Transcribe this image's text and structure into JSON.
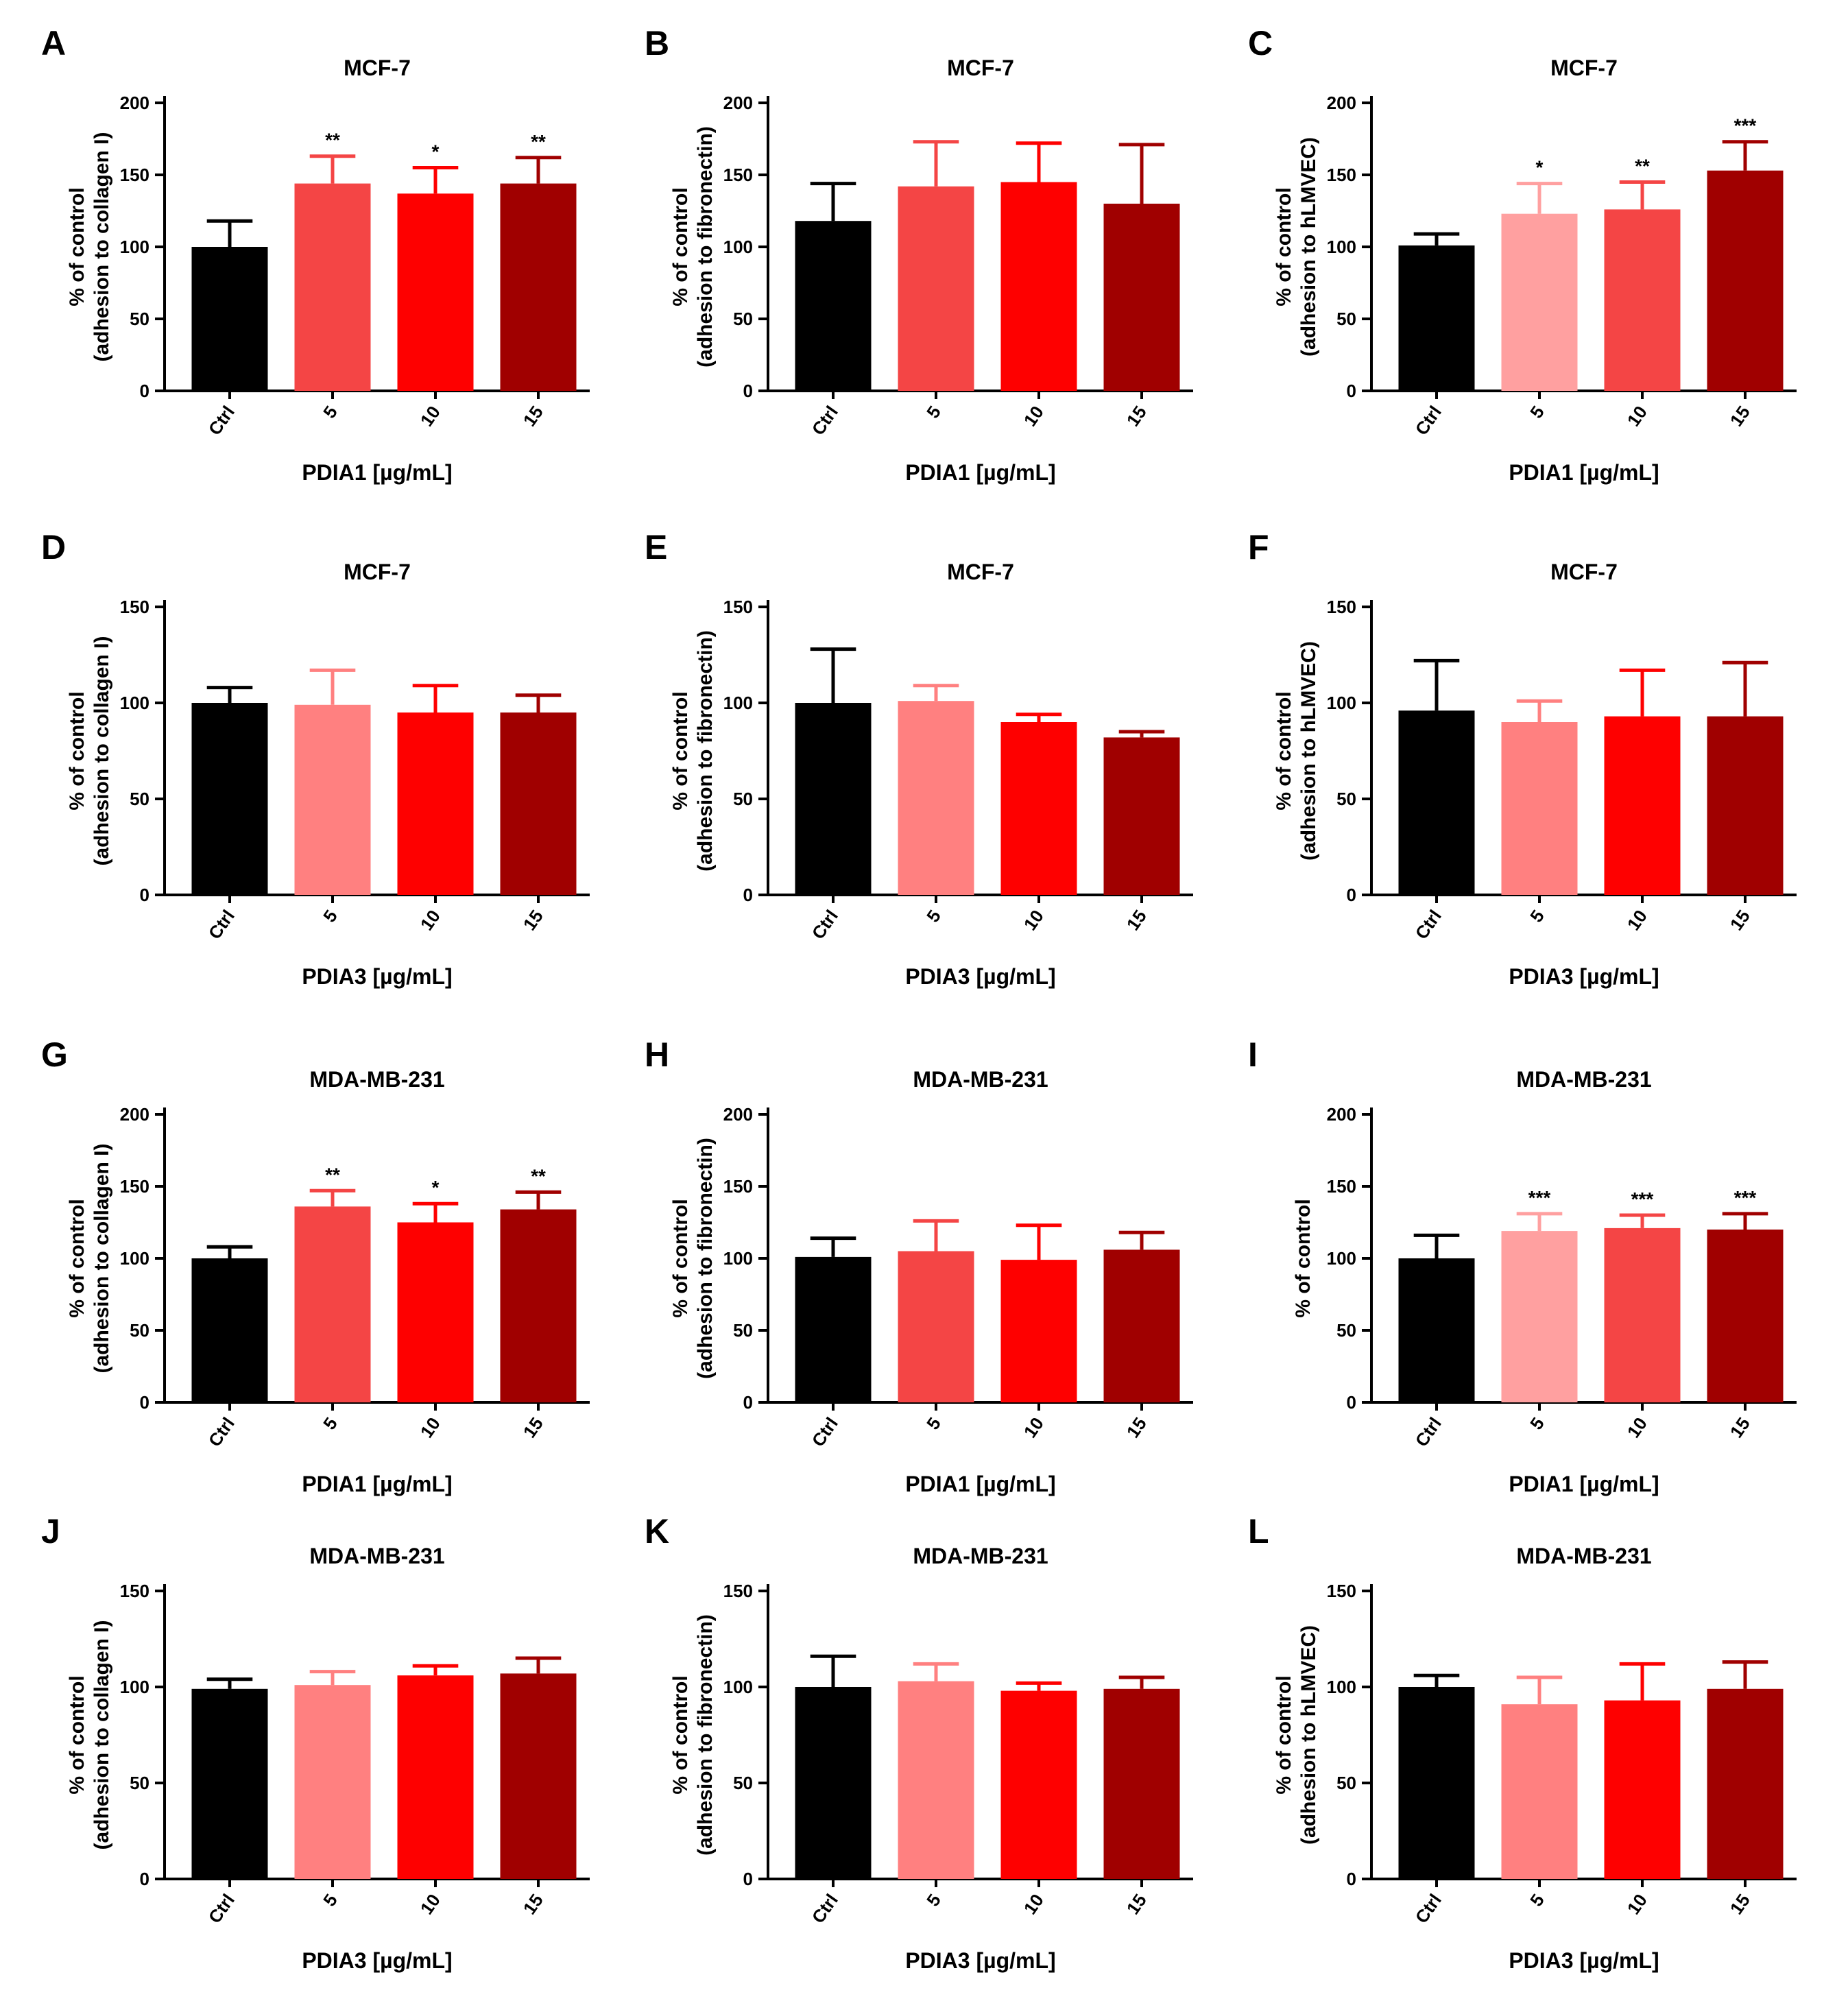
{
  "chart_data": [
    {
      "label": "A",
      "type": "bar",
      "title": "MCF-7",
      "ylabel_line1": "% of control",
      "ylabel_line2": "(adhesion to collagen I)",
      "xlabel": "PDIA1 [µg/mL]",
      "categories": [
        "Ctrl",
        "5",
        "10",
        "15"
      ],
      "values": [
        100,
        144,
        137,
        144
      ],
      "errors": [
        18,
        19,
        18,
        18
      ],
      "significance": [
        "",
        "**",
        "*",
        "**"
      ],
      "colors": [
        "#000000",
        "#f44545",
        "#fe0000",
        "#a00000"
      ],
      "ylim": [
        0,
        200
      ],
      "yticks": [
        0,
        50,
        100,
        150,
        200
      ]
    },
    {
      "label": "B",
      "type": "bar",
      "title": "MCF-7",
      "ylabel_line1": "% of control",
      "ylabel_line2": "(adhesion to fibronectin)",
      "xlabel": "PDIA1 [µg/mL]",
      "categories": [
        "Ctrl",
        "5",
        "10",
        "15"
      ],
      "values": [
        118,
        142,
        145,
        130
      ],
      "errors": [
        26,
        31,
        27,
        41
      ],
      "significance": [
        "",
        "",
        "",
        ""
      ],
      "colors": [
        "#000000",
        "#f44545",
        "#fe0000",
        "#a00000"
      ],
      "ylim": [
        0,
        200
      ],
      "yticks": [
        0,
        50,
        100,
        150,
        200
      ]
    },
    {
      "label": "C",
      "type": "bar",
      "title": "MCF-7",
      "ylabel_line1": "% of control",
      "ylabel_line2": "(adhesion to hLMVEC)",
      "xlabel": "PDIA1 [µg/mL]",
      "categories": [
        "Ctrl",
        "5",
        "10",
        "15"
      ],
      "values": [
        101,
        123,
        126,
        153
      ],
      "errors": [
        8,
        21,
        19,
        20
      ],
      "significance": [
        "",
        "*",
        "**",
        "***"
      ],
      "colors": [
        "#000000",
        "#ffa0a0",
        "#f44545",
        "#a00000"
      ],
      "ylim": [
        0,
        200
      ],
      "yticks": [
        0,
        50,
        100,
        150,
        200
      ]
    },
    {
      "label": "D",
      "type": "bar",
      "title": "MCF-7",
      "ylabel_line1": "% of control",
      "ylabel_line2": "(adhesion to collagen I)",
      "xlabel": "PDIA3 [µg/mL]",
      "categories": [
        "Ctrl",
        "5",
        "10",
        "15"
      ],
      "values": [
        100,
        99,
        95,
        95
      ],
      "errors": [
        8,
        18,
        14,
        9
      ],
      "significance": [
        "",
        "",
        "",
        ""
      ],
      "colors": [
        "#000000",
        "#ff8080",
        "#fe0000",
        "#a00000"
      ],
      "ylim": [
        0,
        150
      ],
      "yticks": [
        0,
        50,
        100,
        150
      ]
    },
    {
      "label": "E",
      "type": "bar",
      "title": "MCF-7",
      "ylabel_line1": "% of control",
      "ylabel_line2": "(adhesion to fibronectin)",
      "xlabel": "PDIA3 [µg/mL]",
      "categories": [
        "Ctrl",
        "5",
        "10",
        "15"
      ],
      "values": [
        100,
        101,
        90,
        82
      ],
      "errors": [
        28,
        8,
        4,
        3
      ],
      "significance": [
        "",
        "",
        "",
        ""
      ],
      "colors": [
        "#000000",
        "#ff8080",
        "#fe0000",
        "#a00000"
      ],
      "ylim": [
        0,
        150
      ],
      "yticks": [
        0,
        50,
        100,
        150
      ]
    },
    {
      "label": "F",
      "type": "bar",
      "title": "MCF-7",
      "ylabel_line1": "% of control",
      "ylabel_line2": "(adhesion to hLMVEC)",
      "xlabel": "PDIA3 [µg/mL]",
      "categories": [
        "Ctrl",
        "5",
        "10",
        "15"
      ],
      "values": [
        96,
        90,
        93,
        93
      ],
      "errors": [
        26,
        11,
        24,
        28
      ],
      "significance": [
        "",
        "",
        "",
        ""
      ],
      "colors": [
        "#000000",
        "#ff8080",
        "#fe0000",
        "#a00000"
      ],
      "ylim": [
        0,
        150
      ],
      "yticks": [
        0,
        50,
        100,
        150
      ]
    },
    {
      "label": "G",
      "type": "bar",
      "title": "MDA-MB-231",
      "ylabel_line1": "% of control",
      "ylabel_line2": "(adhesion to collagen I)",
      "xlabel": "PDIA1 [µg/mL]",
      "categories": [
        "Ctrl",
        "5",
        "10",
        "15"
      ],
      "values": [
        100,
        136,
        125,
        134
      ],
      "errors": [
        8,
        11,
        13,
        12
      ],
      "significance": [
        "",
        "**",
        "*",
        "**"
      ],
      "colors": [
        "#000000",
        "#f44545",
        "#fe0000",
        "#a00000"
      ],
      "ylim": [
        0,
        200
      ],
      "yticks": [
        0,
        50,
        100,
        150,
        200
      ]
    },
    {
      "label": "H",
      "type": "bar",
      "title": "MDA-MB-231",
      "ylabel_line1": "% of control",
      "ylabel_line2": "(adhesion to fibronectin)",
      "xlabel": "PDIA1 [µg/mL]",
      "categories": [
        "Ctrl",
        "5",
        "10",
        "15"
      ],
      "values": [
        101,
        105,
        99,
        106
      ],
      "errors": [
        13,
        21,
        24,
        12
      ],
      "significance": [
        "",
        "",
        "",
        ""
      ],
      "colors": [
        "#000000",
        "#f44545",
        "#fe0000",
        "#a00000"
      ],
      "ylim": [
        0,
        200
      ],
      "yticks": [
        0,
        50,
        100,
        150,
        200
      ]
    },
    {
      "label": "I",
      "type": "bar",
      "title": "MDA-MB-231",
      "ylabel_line1": "% of control",
      "ylabel_line2": "",
      "xlabel": "PDIA1 [µg/mL]",
      "categories": [
        "Ctrl",
        "5",
        "10",
        "15"
      ],
      "values": [
        100,
        119,
        121,
        120
      ],
      "errors": [
        16,
        12,
        9,
        11
      ],
      "significance": [
        "",
        "***",
        "***",
        "***"
      ],
      "colors": [
        "#000000",
        "#ffa0a0",
        "#f44545",
        "#a00000"
      ],
      "ylim": [
        0,
        200
      ],
      "yticks": [
        0,
        50,
        100,
        150,
        200
      ]
    },
    {
      "label": "J",
      "type": "bar",
      "title": "MDA-MB-231",
      "ylabel_line1": "% of control",
      "ylabel_line2": "(adhesion to collagen I)",
      "xlabel": "PDIA3 [µg/mL]",
      "categories": [
        "Ctrl",
        "5",
        "10",
        "15"
      ],
      "values": [
        99,
        101,
        106,
        107
      ],
      "errors": [
        5,
        7,
        5,
        8
      ],
      "significance": [
        "",
        "",
        "",
        ""
      ],
      "colors": [
        "#000000",
        "#ff8080",
        "#fe0000",
        "#a00000"
      ],
      "ylim": [
        0,
        150
      ],
      "yticks": [
        0,
        50,
        100,
        150
      ]
    },
    {
      "label": "K",
      "type": "bar",
      "title": "MDA-MB-231",
      "ylabel_line1": "% of control",
      "ylabel_line2": "(adhesion to fibronectin)",
      "xlabel": "PDIA3 [µg/mL]",
      "categories": [
        "Ctrl",
        "5",
        "10",
        "15"
      ],
      "values": [
        100,
        103,
        98,
        99
      ],
      "errors": [
        16,
        9,
        4,
        6
      ],
      "significance": [
        "",
        "",
        "",
        ""
      ],
      "colors": [
        "#000000",
        "#ff8080",
        "#fe0000",
        "#a00000"
      ],
      "ylim": [
        0,
        150
      ],
      "yticks": [
        0,
        50,
        100,
        150
      ]
    },
    {
      "label": "L",
      "type": "bar",
      "title": "MDA-MB-231",
      "ylabel_line1": "% of control",
      "ylabel_line2": "(adhesion to hLMVEC)",
      "xlabel": "PDIA3 [µg/mL]",
      "categories": [
        "Ctrl",
        "5",
        "10",
        "15"
      ],
      "values": [
        100,
        91,
        93,
        99
      ],
      "errors": [
        6,
        14,
        19,
        14
      ],
      "significance": [
        "",
        "",
        "",
        ""
      ],
      "colors": [
        "#000000",
        "#ff8080",
        "#fe0000",
        "#a00000"
      ],
      "ylim": [
        0,
        150
      ],
      "yticks": [
        0,
        50,
        100,
        150
      ]
    }
  ]
}
